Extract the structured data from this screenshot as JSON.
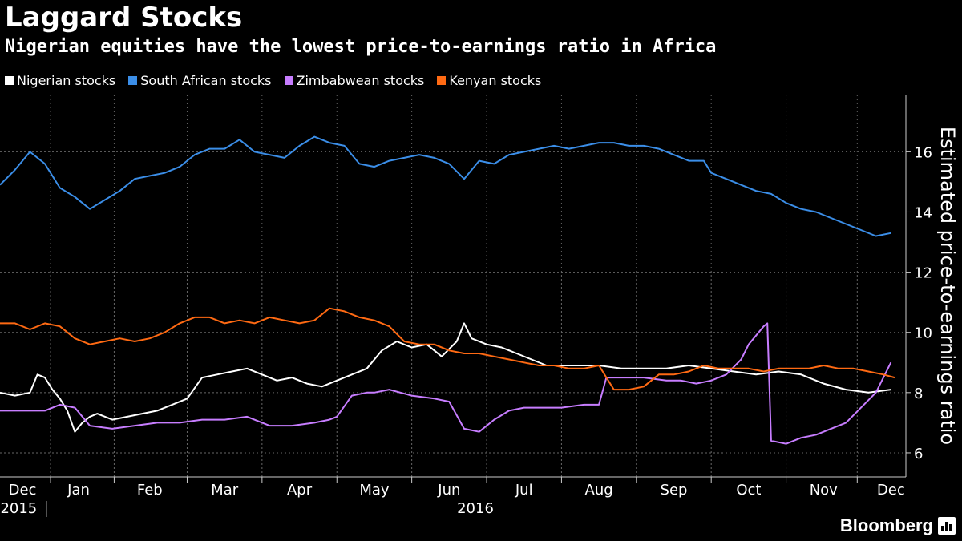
{
  "header": {
    "title": "Laggard Stocks",
    "subtitle": "Nigerian equities have the lowest price-to-earnings ratio in Africa"
  },
  "brand": {
    "name": "Bloomberg"
  },
  "chart_data": {
    "type": "line",
    "title": "Laggard Stocks",
    "subtitle": "Nigerian equities have the lowest price-to-earnings ratio in Africa",
    "ylabel": "Estimated price-to-earnings ratio",
    "xlabel": "",
    "ylim": [
      5.2,
      17.9
    ],
    "yticks": [
      6,
      8,
      10,
      12,
      14,
      16
    ],
    "xlim": [
      0,
      12.1
    ],
    "months": [
      {
        "label": "Dec",
        "pos": 0.3
      },
      {
        "label": "Jan",
        "pos": 1.05
      },
      {
        "label": "Feb",
        "pos": 2.0
      },
      {
        "label": "Mar",
        "pos": 3.0
      },
      {
        "label": "Apr",
        "pos": 4.0
      },
      {
        "label": "May",
        "pos": 5.0
      },
      {
        "label": "Jun",
        "pos": 6.0
      },
      {
        "label": "Jul",
        "pos": 7.0
      },
      {
        "label": "Aug",
        "pos": 8.0
      },
      {
        "label": "Sep",
        "pos": 9.0
      },
      {
        "label": "Oct",
        "pos": 10.0
      },
      {
        "label": "Nov",
        "pos": 11.0
      },
      {
        "label": "Dec",
        "pos": 11.9
      }
    ],
    "years": [
      {
        "label": "2015",
        "pos": 0.25
      },
      {
        "label": "2016",
        "pos": 6.35
      }
    ],
    "grid": true,
    "legend_position": "top-left",
    "series": [
      {
        "name": "Nigerian stocks",
        "color": "#ffffff",
        "x": [
          0,
          0.2,
          0.4,
          0.5,
          0.6,
          0.7,
          0.8,
          0.9,
          1.0,
          1.1,
          1.2,
          1.3,
          1.5,
          1.7,
          1.9,
          2.1,
          2.3,
          2.5,
          2.7,
          2.9,
          3.1,
          3.3,
          3.5,
          3.7,
          3.9,
          4.1,
          4.3,
          4.5,
          4.7,
          4.9,
          5.1,
          5.3,
          5.5,
          5.7,
          5.9,
          6.1,
          6.2,
          6.3,
          6.5,
          6.7,
          6.9,
          7.1,
          7.3,
          7.5,
          7.7,
          8.0,
          8.3,
          8.6,
          8.9,
          9.2,
          9.5,
          9.8,
          10.1,
          10.4,
          10.7,
          11.0,
          11.3,
          11.6,
          11.9
        ],
        "y": [
          8.0,
          7.9,
          8.0,
          8.6,
          8.5,
          8.1,
          7.8,
          7.4,
          6.7,
          7.0,
          7.2,
          7.3,
          7.1,
          7.2,
          7.3,
          7.4,
          7.6,
          7.8,
          8.5,
          8.6,
          8.7,
          8.8,
          8.6,
          8.4,
          8.5,
          8.3,
          8.2,
          8.4,
          8.6,
          8.8,
          9.4,
          9.7,
          9.5,
          9.6,
          9.2,
          9.7,
          10.3,
          9.8,
          9.6,
          9.5,
          9.3,
          9.1,
          8.9,
          8.9,
          8.9,
          8.9,
          8.8,
          8.8,
          8.8,
          8.9,
          8.8,
          8.7,
          8.6,
          8.7,
          8.6,
          8.3,
          8.1,
          8.0,
          8.1
        ]
      },
      {
        "name": "South African stocks",
        "color": "#3b8ee8",
        "x": [
          0,
          0.2,
          0.4,
          0.6,
          0.8,
          1.0,
          1.2,
          1.4,
          1.6,
          1.8,
          2.0,
          2.2,
          2.4,
          2.6,
          2.8,
          3.0,
          3.2,
          3.4,
          3.6,
          3.8,
          4.0,
          4.2,
          4.4,
          4.6,
          4.8,
          5.0,
          5.2,
          5.4,
          5.6,
          5.8,
          6.0,
          6.2,
          6.4,
          6.6,
          6.8,
          7.0,
          7.2,
          7.4,
          7.6,
          7.8,
          8.0,
          8.2,
          8.4,
          8.6,
          8.8,
          9.0,
          9.2,
          9.4,
          9.5,
          9.7,
          9.9,
          10.1,
          10.3,
          10.5,
          10.7,
          10.9,
          11.1,
          11.3,
          11.5,
          11.7,
          11.9
        ],
        "y": [
          14.9,
          15.4,
          16.0,
          15.6,
          14.8,
          14.5,
          14.1,
          14.4,
          14.7,
          15.1,
          15.2,
          15.3,
          15.5,
          15.9,
          16.1,
          16.1,
          16.4,
          16.0,
          15.9,
          15.8,
          16.2,
          16.5,
          16.3,
          16.2,
          15.6,
          15.5,
          15.7,
          15.8,
          15.9,
          15.8,
          15.6,
          15.1,
          15.7,
          15.6,
          15.9,
          16.0,
          16.1,
          16.2,
          16.1,
          16.2,
          16.3,
          16.3,
          16.2,
          16.2,
          16.1,
          15.9,
          15.7,
          15.7,
          15.3,
          15.1,
          14.9,
          14.7,
          14.6,
          14.3,
          14.1,
          14.0,
          13.8,
          13.6,
          13.4,
          13.2,
          13.3
        ]
      },
      {
        "name": "Zimbabwean stocks",
        "color": "#c77dff",
        "x": [
          0,
          0.3,
          0.6,
          0.8,
          1.0,
          1.2,
          1.5,
          1.8,
          2.1,
          2.4,
          2.7,
          3.0,
          3.3,
          3.6,
          3.9,
          4.2,
          4.4,
          4.5,
          4.7,
          4.9,
          5.0,
          5.2,
          5.5,
          5.8,
          6.0,
          6.2,
          6.4,
          6.6,
          6.8,
          7.0,
          7.2,
          7.5,
          7.8,
          8.0,
          8.1,
          8.3,
          8.6,
          8.9,
          9.1,
          9.3,
          9.5,
          9.7,
          9.9,
          10.0,
          10.2,
          10.25,
          10.3,
          10.5,
          10.7,
          10.9,
          11.1,
          11.3,
          11.5,
          11.7,
          11.9
        ],
        "y": [
          7.4,
          7.4,
          7.4,
          7.6,
          7.5,
          6.9,
          6.8,
          6.9,
          7.0,
          7.0,
          7.1,
          7.1,
          7.2,
          6.9,
          6.9,
          7.0,
          7.1,
          7.2,
          7.9,
          8.0,
          8.0,
          8.1,
          7.9,
          7.8,
          7.7,
          6.8,
          6.7,
          7.1,
          7.4,
          7.5,
          7.5,
          7.5,
          7.6,
          7.6,
          8.5,
          8.5,
          8.5,
          8.4,
          8.4,
          8.3,
          8.4,
          8.6,
          9.1,
          9.6,
          10.2,
          10.3,
          6.4,
          6.3,
          6.5,
          6.6,
          6.8,
          7.0,
          7.5,
          8.0,
          9.0
        ]
      },
      {
        "name": "Kenyan stocks",
        "color": "#ff6a13",
        "x": [
          0,
          0.2,
          0.4,
          0.6,
          0.8,
          1.0,
          1.2,
          1.4,
          1.6,
          1.8,
          2.0,
          2.2,
          2.4,
          2.6,
          2.8,
          3.0,
          3.2,
          3.4,
          3.6,
          3.8,
          4.0,
          4.2,
          4.4,
          4.6,
          4.8,
          5.0,
          5.2,
          5.4,
          5.6,
          5.8,
          6.0,
          6.2,
          6.4,
          6.6,
          6.8,
          7.0,
          7.2,
          7.4,
          7.6,
          7.8,
          8.0,
          8.2,
          8.4,
          8.6,
          8.8,
          9.0,
          9.2,
          9.4,
          9.6,
          9.8,
          10.0,
          10.2,
          10.4,
          10.6,
          10.8,
          11.0,
          11.2,
          11.4,
          11.6,
          11.8,
          11.95
        ],
        "y": [
          10.3,
          10.3,
          10.1,
          10.3,
          10.2,
          9.8,
          9.6,
          9.7,
          9.8,
          9.7,
          9.8,
          10.0,
          10.3,
          10.5,
          10.5,
          10.3,
          10.4,
          10.3,
          10.5,
          10.4,
          10.3,
          10.4,
          10.8,
          10.7,
          10.5,
          10.4,
          10.2,
          9.7,
          9.6,
          9.6,
          9.4,
          9.3,
          9.3,
          9.2,
          9.1,
          9.0,
          8.9,
          8.9,
          8.8,
          8.8,
          8.9,
          8.1,
          8.1,
          8.2,
          8.6,
          8.6,
          8.7,
          8.9,
          8.8,
          8.8,
          8.8,
          8.7,
          8.8,
          8.8,
          8.8,
          8.9,
          8.8,
          8.8,
          8.7,
          8.6,
          8.5
        ]
      }
    ]
  }
}
